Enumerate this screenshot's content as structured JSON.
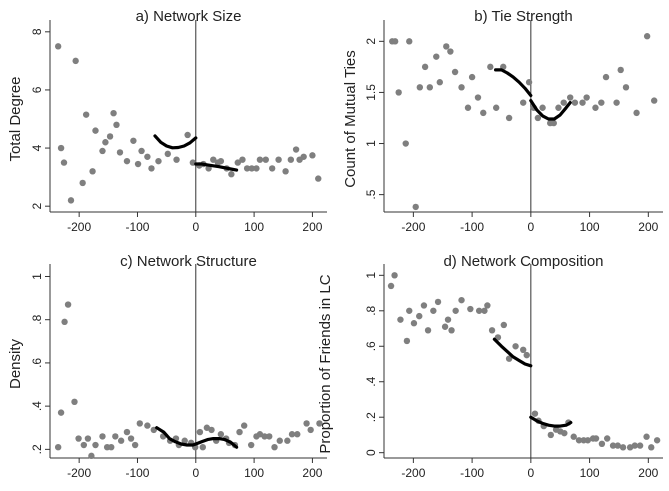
{
  "colors": {
    "scatter": "#7f7f7f",
    "fit": "#000000",
    "axis": "#333333",
    "cutoff": "#333333",
    "background": "#ffffff"
  },
  "chart_data": [
    {
      "type": "scatter",
      "title": "a) Network Size",
      "xlabel": "",
      "ylabel": "Total Degree",
      "xlim": [
        -250,
        225
      ],
      "ylim": [
        1.8,
        8.2
      ],
      "xticks": [
        -200,
        -100,
        0,
        100,
        200
      ],
      "xtick_labels": [
        "-200",
        "-100",
        "0",
        "100",
        "200"
      ],
      "yticks": [
        2,
        4,
        6,
        8
      ],
      "ytick_labels": [
        "2",
        "4",
        "6",
        "8"
      ],
      "cutoff_x": 0,
      "points": [
        [
          -236,
          7.5
        ],
        [
          -231,
          4.0
        ],
        [
          -226,
          3.5
        ],
        [
          -214,
          2.2
        ],
        [
          -206,
          7.0
        ],
        [
          -194,
          2.8
        ],
        [
          -188,
          5.15
        ],
        [
          -177,
          3.2
        ],
        [
          -172,
          4.6
        ],
        [
          -160,
          3.9
        ],
        [
          -155,
          4.2
        ],
        [
          -147,
          4.4
        ],
        [
          -141,
          5.2
        ],
        [
          -136,
          4.8
        ],
        [
          -130,
          3.85
        ],
        [
          -118,
          3.55
        ],
        [
          -107,
          4.25
        ],
        [
          -99,
          3.45
        ],
        [
          -93,
          3.9
        ],
        [
          -83,
          3.7
        ],
        [
          -76,
          3.3
        ],
        [
          -64,
          3.55
        ],
        [
          -48,
          3.8
        ],
        [
          -33,
          3.6
        ],
        [
          -14,
          4.45
        ],
        [
          -5,
          3.5
        ],
        [
          6,
          3.4
        ],
        [
          13,
          3.45
        ],
        [
          22,
          3.3
        ],
        [
          30,
          3.6
        ],
        [
          38,
          3.5
        ],
        [
          43,
          3.55
        ],
        [
          53,
          3.3
        ],
        [
          61,
          3.1
        ],
        [
          72,
          3.5
        ],
        [
          80,
          3.6
        ],
        [
          88,
          3.3
        ],
        [
          96,
          3.3
        ],
        [
          104,
          3.3
        ],
        [
          110,
          3.6
        ],
        [
          120,
          3.6
        ],
        [
          131,
          3.3
        ],
        [
          142,
          3.6
        ],
        [
          154,
          3.2
        ],
        [
          163,
          3.6
        ],
        [
          172,
          3.95
        ],
        [
          178,
          3.6
        ],
        [
          185,
          3.7
        ],
        [
          200,
          3.75
        ],
        [
          210,
          2.95
        ]
      ],
      "fit_left": [
        [
          -70,
          4.42
        ],
        [
          -60,
          4.2
        ],
        [
          -50,
          4.07
        ],
        [
          -40,
          4.01
        ],
        [
          -30,
          4.02
        ],
        [
          -20,
          4.07
        ],
        [
          -10,
          4.18
        ],
        [
          0,
          4.35
        ]
      ],
      "fit_right": [
        [
          0,
          3.45
        ],
        [
          10,
          3.45
        ],
        [
          20,
          3.42
        ],
        [
          30,
          3.39
        ],
        [
          40,
          3.36
        ],
        [
          50,
          3.32
        ],
        [
          60,
          3.28
        ],
        [
          70,
          3.24
        ]
      ]
    },
    {
      "type": "scatter",
      "title": "b) Tie Strength",
      "xlabel": "",
      "ylabel": "Count of Mutual Ties",
      "xlim": [
        -250,
        225
      ],
      "ylim": [
        0.33,
        2.15
      ],
      "xticks": [
        -200,
        -100,
        0,
        100,
        200
      ],
      "xtick_labels": [
        "-200",
        "-100",
        "0",
        "100",
        "200"
      ],
      "yticks": [
        0.5,
        1.0,
        1.5,
        2.0
      ],
      "ytick_labels": [
        ".5",
        "1",
        "1.5",
        "2"
      ],
      "cutoff_x": 0,
      "points": [
        [
          -236,
          2.0
        ],
        [
          -231,
          2.0
        ],
        [
          -225,
          1.5
        ],
        [
          -213,
          1.0
        ],
        [
          -207,
          2.0
        ],
        [
          -196,
          0.38
        ],
        [
          -189,
          1.55
        ],
        [
          -180,
          1.75
        ],
        [
          -172,
          1.55
        ],
        [
          -161,
          1.85
        ],
        [
          -155,
          1.6
        ],
        [
          -144,
          1.95
        ],
        [
          -137,
          1.9
        ],
        [
          -129,
          1.7
        ],
        [
          -118,
          1.55
        ],
        [
          -107,
          1.35
        ],
        [
          -100,
          1.65
        ],
        [
          -90,
          1.45
        ],
        [
          -81,
          1.3
        ],
        [
          -69,
          1.75
        ],
        [
          -59,
          1.35
        ],
        [
          -47,
          1.75
        ],
        [
          -37,
          1.25
        ],
        [
          -13,
          1.4
        ],
        [
          -3,
          1.6
        ],
        [
          5,
          1.35
        ],
        [
          12,
          1.25
        ],
        [
          20,
          1.35
        ],
        [
          33,
          1.2
        ],
        [
          39,
          1.2
        ],
        [
          47,
          1.35
        ],
        [
          56,
          1.4
        ],
        [
          67,
          1.45
        ],
        [
          75,
          1.4
        ],
        [
          88,
          1.4
        ],
        [
          95,
          1.45
        ],
        [
          110,
          1.35
        ],
        [
          120,
          1.4
        ],
        [
          128,
          1.65
        ],
        [
          146,
          1.4
        ],
        [
          153,
          1.72
        ],
        [
          162,
          1.55
        ],
        [
          180,
          1.3
        ],
        [
          198,
          2.05
        ],
        [
          210,
          1.42
        ]
      ],
      "fit_left": [
        [
          -60,
          1.72
        ],
        [
          -50,
          1.72
        ],
        [
          -40,
          1.69
        ],
        [
          -30,
          1.65
        ],
        [
          -20,
          1.6
        ],
        [
          -10,
          1.54
        ],
        [
          0,
          1.47
        ]
      ],
      "fit_right": [
        [
          0,
          1.42
        ],
        [
          10,
          1.33
        ],
        [
          20,
          1.27
        ],
        [
          30,
          1.24
        ],
        [
          40,
          1.24
        ],
        [
          50,
          1.28
        ],
        [
          60,
          1.35
        ],
        [
          67,
          1.4
        ]
      ]
    },
    {
      "type": "scatter",
      "title": "c) Network Structure",
      "xlabel": "",
      "ylabel": "Density",
      "xlim": [
        -250,
        225
      ],
      "ylim": [
        0.16,
        1.03
      ],
      "xticks": [
        -200,
        -100,
        0,
        100,
        200
      ],
      "xtick_labels": [
        "-200",
        "-100",
        "0",
        "100",
        "200"
      ],
      "yticks": [
        0.2,
        0.4,
        0.6,
        0.8,
        1.0
      ],
      "ytick_labels": [
        ".2",
        ".4",
        ".6",
        ".8",
        "1"
      ],
      "cutoff_x": 0,
      "points": [
        [
          -236,
          0.21
        ],
        [
          -231,
          0.37
        ],
        [
          -225,
          0.79
        ],
        [
          -219,
          0.87
        ],
        [
          -208,
          0.42
        ],
        [
          -201,
          0.25
        ],
        [
          -192,
          0.22
        ],
        [
          -185,
          0.25
        ],
        [
          -179,
          0.17
        ],
        [
          -172,
          0.22
        ],
        [
          -160,
          0.26
        ],
        [
          -152,
          0.21
        ],
        [
          -145,
          0.21
        ],
        [
          -138,
          0.26
        ],
        [
          -128,
          0.24
        ],
        [
          -118,
          0.28
        ],
        [
          -111,
          0.25
        ],
        [
          -104,
          0.22
        ],
        [
          -96,
          0.32
        ],
        [
          -83,
          0.31
        ],
        [
          -72,
          0.29
        ],
        [
          -56,
          0.26
        ],
        [
          -44,
          0.24
        ],
        [
          -34,
          0.25
        ],
        [
          -29,
          0.22
        ],
        [
          -19,
          0.24
        ],
        [
          -8,
          0.23
        ],
        [
          -1,
          0.21
        ],
        [
          7,
          0.28
        ],
        [
          12,
          0.21
        ],
        [
          19,
          0.3
        ],
        [
          27,
          0.29
        ],
        [
          35,
          0.24
        ],
        [
          43,
          0.27
        ],
        [
          52,
          0.25
        ],
        [
          57,
          0.23
        ],
        [
          67,
          0.22
        ],
        [
          75,
          0.28
        ],
        [
          83,
          0.31
        ],
        [
          95,
          0.22
        ],
        [
          104,
          0.26
        ],
        [
          110,
          0.27
        ],
        [
          118,
          0.26
        ],
        [
          126,
          0.26
        ],
        [
          135,
          0.21
        ],
        [
          144,
          0.24
        ],
        [
          157,
          0.24
        ],
        [
          165,
          0.27
        ],
        [
          174,
          0.27
        ],
        [
          190,
          0.32
        ],
        [
          197,
          0.29
        ],
        [
          212,
          0.32
        ]
      ],
      "fit_left": [
        [
          -67,
          0.3
        ],
        [
          -55,
          0.28
        ],
        [
          -45,
          0.25
        ],
        [
          -35,
          0.235
        ],
        [
          -25,
          0.225
        ],
        [
          -15,
          0.22
        ],
        [
          -5,
          0.22
        ],
        [
          0,
          0.225
        ]
      ],
      "fit_right": [
        [
          0,
          0.225
        ],
        [
          10,
          0.235
        ],
        [
          20,
          0.245
        ],
        [
          30,
          0.25
        ],
        [
          40,
          0.25
        ],
        [
          50,
          0.245
        ],
        [
          60,
          0.232
        ],
        [
          70,
          0.21
        ]
      ]
    },
    {
      "type": "scatter",
      "title": "d) Network Composition",
      "xlabel": "",
      "ylabel": "Proportion of Friends in LC",
      "xlim": [
        -250,
        225
      ],
      "ylim": [
        -0.03,
        1.03
      ],
      "xticks": [
        -200,
        -100,
        0,
        100,
        200
      ],
      "xtick_labels": [
        "-200",
        "-100",
        "0",
        "100",
        "200"
      ],
      "yticks": [
        0,
        0.2,
        0.4,
        0.6,
        0.8,
        1.0
      ],
      "ytick_labels": [
        "0",
        ".2",
        ".4",
        ".6",
        ".8",
        "1"
      ],
      "cutoff_x": 0,
      "points": [
        [
          -238,
          0.94
        ],
        [
          -232,
          1.0
        ],
        [
          -222,
          0.75
        ],
        [
          -211,
          0.63
        ],
        [
          -207,
          0.8
        ],
        [
          -199,
          0.73
        ],
        [
          -190,
          0.77
        ],
        [
          -182,
          0.83
        ],
        [
          -175,
          0.69
        ],
        [
          -166,
          0.8
        ],
        [
          -158,
          0.85
        ],
        [
          -146,
          0.71
        ],
        [
          -141,
          0.75
        ],
        [
          -135,
          0.69
        ],
        [
          -128,
          0.8
        ],
        [
          -118,
          0.86
        ],
        [
          -103,
          0.81
        ],
        [
          -88,
          0.8
        ],
        [
          -79,
          0.8
        ],
        [
          -74,
          0.83
        ],
        [
          -66,
          0.69
        ],
        [
          -56,
          0.65
        ],
        [
          -46,
          0.72
        ],
        [
          -37,
          0.53
        ],
        [
          -26,
          0.6
        ],
        [
          -13,
          0.58
        ],
        [
          -7,
          0.55
        ],
        [
          7,
          0.22
        ],
        [
          13,
          0.18
        ],
        [
          22,
          0.15
        ],
        [
          34,
          0.1
        ],
        [
          43,
          0.13
        ],
        [
          50,
          0.12
        ],
        [
          57,
          0.11
        ],
        [
          64,
          0.17
        ],
        [
          73,
          0.09
        ],
        [
          82,
          0.07
        ],
        [
          90,
          0.07
        ],
        [
          97,
          0.07
        ],
        [
          106,
          0.08
        ],
        [
          111,
          0.08
        ],
        [
          121,
          0.05
        ],
        [
          130,
          0.08
        ],
        [
          140,
          0.04
        ],
        [
          148,
          0.04
        ],
        [
          157,
          0.03
        ],
        [
          169,
          0.03
        ],
        [
          177,
          0.04
        ],
        [
          186,
          0.04
        ],
        [
          197,
          0.09
        ],
        [
          205,
          0.03
        ],
        [
          215,
          0.07
        ]
      ],
      "fit_left": [
        [
          -62,
          0.64
        ],
        [
          -50,
          0.6
        ],
        [
          -40,
          0.57
        ],
        [
          -30,
          0.54
        ],
        [
          -20,
          0.52
        ],
        [
          -10,
          0.5
        ],
        [
          0,
          0.49
        ]
      ],
      "fit_right": [
        [
          0,
          0.2
        ],
        [
          10,
          0.18
        ],
        [
          20,
          0.165
        ],
        [
          30,
          0.155
        ],
        [
          40,
          0.15
        ],
        [
          50,
          0.15
        ],
        [
          60,
          0.155
        ],
        [
          68,
          0.17
        ]
      ]
    }
  ]
}
